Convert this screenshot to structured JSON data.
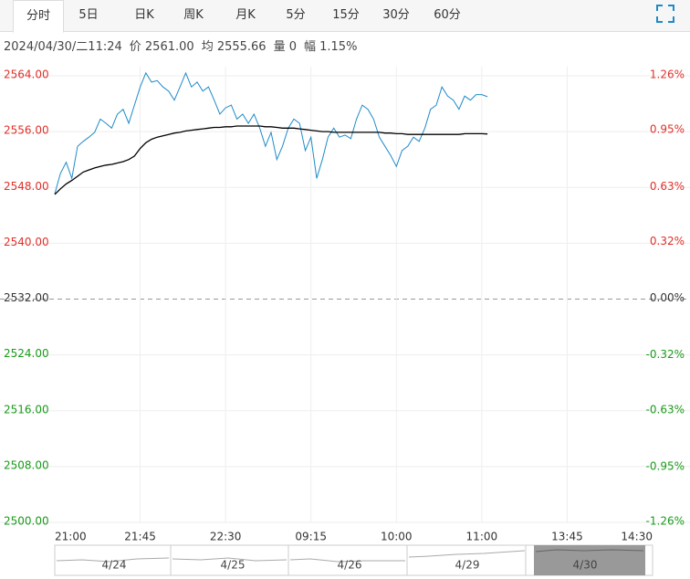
{
  "tabs": [
    "分时",
    "5日",
    "日K",
    "周K",
    "月K",
    "5分",
    "15分",
    "30分",
    "60分"
  ],
  "info": [
    "2024/04/30/二11:24",
    "价 2561.00",
    "均 2555.66",
    "量 0",
    "幅 1.15%"
  ],
  "navigator": {
    "dates": [
      "4/24",
      "4/25",
      "4/26",
      "4/29",
      "4/30"
    ]
  },
  "chart_data": {
    "type": "line",
    "categories": [
      "21:00",
      null,
      null,
      null,
      null,
      null,
      null,
      null,
      null,
      null,
      null,
      null,
      null,
      null,
      null,
      "21:45",
      null,
      null,
      null,
      null,
      null,
      null,
      null,
      null,
      null,
      null,
      null,
      null,
      null,
      null,
      "22:30",
      null,
      null,
      null,
      null,
      null,
      null,
      null,
      null,
      null,
      null,
      null,
      null,
      null,
      null,
      "09:15",
      null,
      null,
      null,
      null,
      null,
      null,
      null,
      null,
      null,
      null,
      null,
      null,
      null,
      null,
      "10:00",
      null,
      null,
      null,
      null,
      null,
      null,
      null,
      null,
      null,
      null,
      null,
      null,
      null,
      null,
      "11:00",
      null,
      null,
      null,
      null,
      null,
      null,
      null,
      null,
      null,
      null,
      null,
      null,
      null,
      null,
      "13:45",
      null,
      null,
      null,
      null,
      null,
      null,
      null,
      null,
      null,
      null,
      null,
      null,
      null,
      null,
      "14:30"
    ],
    "series": [
      {
        "color": "#1f8ac8",
        "values": [
          2547.1,
          2550.0,
          2551.6,
          2549.3,
          2553.9,
          2554.6,
          2555.2,
          2555.9,
          2557.8,
          2557.2,
          2556.5,
          2558.5,
          2559.2,
          2557.2,
          2559.8,
          2562.4,
          2564.4,
          2563.1,
          2563.3,
          2562.4,
          2561.8,
          2560.5,
          2562.4,
          2564.4,
          2562.4,
          2563.1,
          2561.8,
          2562.4,
          2560.5,
          2558.5,
          2559.4,
          2559.8,
          2557.8,
          2558.5,
          2557.2,
          2558.5,
          2556.5,
          2553.9,
          2555.9,
          2552.0,
          2553.9,
          2556.5,
          2557.8,
          2557.2,
          2553.3,
          2555.2,
          2549.3,
          2552.0,
          2555.2,
          2556.5,
          2555.2,
          2555.5,
          2555.0,
          2557.8,
          2559.8,
          2559.2,
          2557.8,
          2555.2,
          2553.9,
          2552.6,
          2551.0,
          2553.3,
          2553.9,
          2555.2,
          2554.6,
          2556.5,
          2559.2,
          2559.8,
          2562.4,
          2561.1,
          2560.5,
          2559.2,
          2561.1,
          2560.5,
          2561.3,
          2561.3,
          2561.0,
          null,
          null,
          null,
          null,
          null,
          null,
          null,
          null,
          null,
          null,
          null,
          null,
          null,
          null,
          null,
          null,
          null,
          null,
          null,
          null,
          null,
          null,
          null,
          null,
          null,
          null,
          null,
          null,
          null
        ]
      },
      {
        "color": "#000000",
        "values": [
          2547.0,
          2547.8,
          2548.5,
          2549.0,
          2549.6,
          2550.2,
          2550.5,
          2550.8,
          2551.0,
          2551.2,
          2551.3,
          2551.5,
          2551.7,
          2552.0,
          2552.5,
          2553.6,
          2554.4,
          2554.9,
          2555.2,
          2555.4,
          2555.6,
          2555.8,
          2555.9,
          2556.1,
          2556.2,
          2556.3,
          2556.4,
          2556.5,
          2556.6,
          2556.6,
          2556.7,
          2556.7,
          2556.8,
          2556.8,
          2556.8,
          2556.8,
          2556.8,
          2556.7,
          2556.7,
          2556.6,
          2556.5,
          2556.5,
          2556.5,
          2556.4,
          2556.3,
          2556.2,
          2556.1,
          2556.0,
          2556.0,
          2555.9,
          2555.9,
          2555.9,
          2555.9,
          2555.9,
          2555.9,
          2555.9,
          2555.9,
          2555.9,
          2555.8,
          2555.8,
          2555.7,
          2555.7,
          2555.6,
          2555.6,
          2555.6,
          2555.6,
          2555.6,
          2555.6,
          2555.6,
          2555.6,
          2555.6,
          2555.6,
          2555.7,
          2555.7,
          2555.7,
          2555.7,
          2555.66,
          null,
          null,
          null,
          null,
          null,
          null,
          null,
          null,
          null,
          null,
          null,
          null,
          null,
          null,
          null,
          null,
          null,
          null,
          null,
          null,
          null,
          null,
          null,
          null,
          null,
          null,
          null,
          null,
          null
        ]
      }
    ],
    "ylim": [
      2500,
      2564
    ],
    "yticks": [
      {
        "value": 2564,
        "label": "2564.00"
      },
      {
        "value": 2556,
        "label": "2556.00"
      },
      {
        "value": 2548,
        "label": "2548.00"
      },
      {
        "value": 2540,
        "label": "2540.00"
      },
      {
        "value": 2532,
        "label": "2532.00"
      },
      {
        "value": 2524,
        "label": "2524.00"
      },
      {
        "value": 2516,
        "label": "2516.00"
      },
      {
        "value": 2508,
        "label": "2508.00"
      },
      {
        "value": 2500,
        "label": "2500.00"
      }
    ],
    "y2lim": [
      -1.26,
      1.26
    ],
    "y2ticks": [
      {
        "value": 1.26,
        "label": "1.26%"
      },
      {
        "value": 0.95,
        "label": "0.95%"
      },
      {
        "value": 0.63,
        "label": "0.63%"
      },
      {
        "value": 0.32,
        "label": "0.32%"
      },
      {
        "value": 0,
        "label": "0.00%"
      },
      {
        "value": -0.32,
        "label": "-0.32%"
      },
      {
        "value": -0.63,
        "label": "-0.63%"
      },
      {
        "value": -0.95,
        "label": "-0.95%"
      },
      {
        "value": -1.26,
        "label": "-1.26%"
      }
    ],
    "grid": true,
    "up_color": "#e0302a",
    "down_color": "#1a9a1a",
    "flat_color": "#333333"
  }
}
